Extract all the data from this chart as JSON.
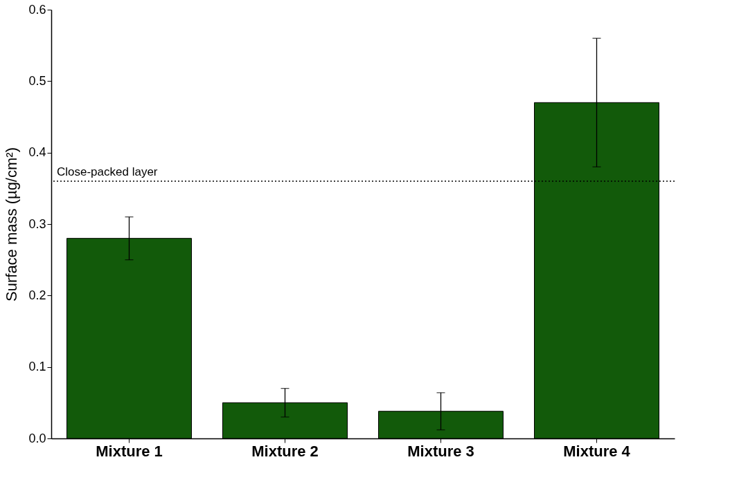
{
  "chart_data": {
    "type": "bar",
    "ylabel": "Surface mass (µg/cm²)",
    "categories": [
      "Mixture 1",
      "Mixture 2",
      "Mixture 3",
      "Mixture 4"
    ],
    "values": [
      0.28,
      0.05,
      0.038,
      0.47
    ],
    "color": "#125a0a",
    "errors": [
      [
        0.25,
        0.31
      ],
      [
        0.03,
        0.07
      ],
      [
        0.012,
        0.064
      ],
      [
        0.38,
        0.56
      ]
    ],
    "ylim": [
      0,
      0.6
    ],
    "yticks": [
      {
        "value": 0,
        "label": "0.0"
      },
      0.1,
      0.2,
      0.3,
      0.4,
      0.5,
      0.6
    ],
    "ref_lines": [
      {
        "axis": "y",
        "value": 0.36,
        "label": "Close-packed layer",
        "line_style": "dotted"
      }
    ],
    "grid": false
  }
}
